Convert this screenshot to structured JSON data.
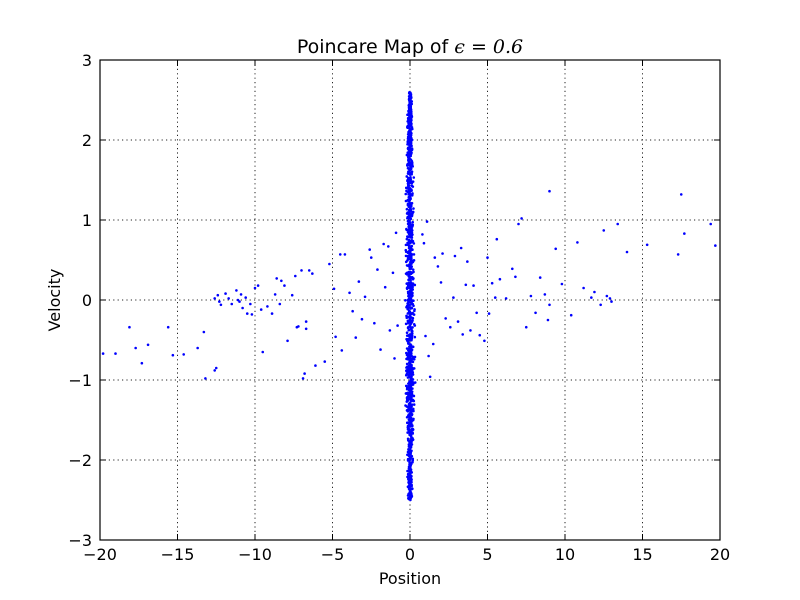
{
  "chart_data": {
    "type": "scatter",
    "title_prefix": "Poincare Map of ",
    "title_math": "ϵ = 0.6",
    "xlabel": "Position",
    "ylabel": "Velocity",
    "xlim": [
      -20,
      20
    ],
    "ylim": [
      -3,
      3
    ],
    "xticks": [
      -20,
      -15,
      -10,
      -5,
      0,
      5,
      10,
      15,
      20
    ],
    "xtick_labels": [
      "−20",
      "−15",
      "−10",
      "−5",
      "0",
      "5",
      "10",
      "15",
      "20"
    ],
    "yticks": [
      -3,
      -2,
      -1,
      0,
      1,
      2,
      3
    ],
    "ytick_labels": [
      "−3",
      "−2",
      "−1",
      "0",
      "1",
      "2",
      "3"
    ],
    "grid": true,
    "marker_color": "#0000ff",
    "central_band": {
      "description": "dense cluster of points tightly around position 0",
      "x_center": 0.0,
      "x_spread": 0.25,
      "y_range": [
        -2.5,
        2.6
      ],
      "approx_point_count": 1200
    },
    "points": [
      [
        -19.8,
        -0.67
      ],
      [
        -19.0,
        -0.67
      ],
      [
        -18.1,
        -0.34
      ],
      [
        -17.7,
        -0.6
      ],
      [
        -17.3,
        -0.79
      ],
      [
        -16.9,
        -0.56
      ],
      [
        -15.6,
        -0.34
      ],
      [
        -15.3,
        -0.69
      ],
      [
        -14.6,
        -0.68
      ],
      [
        -13.7,
        -0.6
      ],
      [
        -13.3,
        -0.4
      ],
      [
        -13.2,
        -0.98
      ],
      [
        -12.6,
        -0.88
      ],
      [
        -12.5,
        -0.85
      ],
      [
        -12.6,
        0.02
      ],
      [
        -12.4,
        0.06
      ],
      [
        -12.3,
        -0.02
      ],
      [
        -12.2,
        -0.06
      ],
      [
        -11.9,
        0.08
      ],
      [
        -11.7,
        0.02
      ],
      [
        -11.5,
        -0.05
      ],
      [
        -11.2,
        0.12
      ],
      [
        -11.1,
        0.0
      ],
      [
        -11.0,
        -0.02
      ],
      [
        -10.9,
        0.07
      ],
      [
        -10.8,
        -0.1
      ],
      [
        -10.6,
        0.03
      ],
      [
        -10.5,
        -0.17
      ],
      [
        -10.3,
        -0.05
      ],
      [
        -10.2,
        -0.18
      ],
      [
        -10.0,
        0.15
      ],
      [
        -9.8,
        0.18
      ],
      [
        -9.6,
        -0.12
      ],
      [
        -9.5,
        -0.65
      ],
      [
        -9.2,
        -0.08
      ],
      [
        -8.9,
        -0.17
      ],
      [
        -8.7,
        0.07
      ],
      [
        -8.6,
        0.27
      ],
      [
        -8.4,
        -0.05
      ],
      [
        -8.3,
        0.24
      ],
      [
        -8.1,
        0.18
      ],
      [
        -7.9,
        -0.51
      ],
      [
        -7.6,
        0.06
      ],
      [
        -7.4,
        0.3
      ],
      [
        -7.3,
        -0.34
      ],
      [
        -7.2,
        -0.33
      ],
      [
        -7.0,
        0.37
      ],
      [
        -6.9,
        -0.98
      ],
      [
        -6.8,
        -0.92
      ],
      [
        -6.7,
        -0.27
      ],
      [
        -6.7,
        -0.36
      ],
      [
        -6.5,
        0.37
      ],
      [
        -6.3,
        0.33
      ],
      [
        -6.1,
        -0.82
      ],
      [
        -5.5,
        -0.77
      ],
      [
        -5.2,
        0.45
      ],
      [
        -4.9,
        0.14
      ],
      [
        -4.8,
        -0.46
      ],
      [
        -4.5,
        0.57
      ],
      [
        -4.4,
        -0.63
      ],
      [
        -4.2,
        0.57
      ],
      [
        -3.9,
        0.09
      ],
      [
        -3.7,
        -0.14
      ],
      [
        -3.5,
        -0.47
      ],
      [
        -3.3,
        0.23
      ],
      [
        -3.1,
        -0.24
      ],
      [
        -2.9,
        0.04
      ],
      [
        -2.6,
        0.63
      ],
      [
        -2.5,
        0.53
      ],
      [
        -2.3,
        -0.29
      ],
      [
        -2.1,
        0.38
      ],
      [
        -1.9,
        -0.62
      ],
      [
        -1.7,
        0.7
      ],
      [
        -1.6,
        0.16
      ],
      [
        -1.4,
        0.67
      ],
      [
        -1.3,
        -0.38
      ],
      [
        -1.1,
        0.34
      ],
      [
        -1.0,
        -0.73
      ],
      [
        -0.9,
        0.84
      ],
      [
        -0.8,
        -0.32
      ],
      [
        0.8,
        0.82
      ],
      [
        0.9,
        0.71
      ],
      [
        1.0,
        -0.45
      ],
      [
        1.1,
        0.98
      ],
      [
        1.2,
        -0.7
      ],
      [
        1.3,
        -0.96
      ],
      [
        1.5,
        -0.55
      ],
      [
        1.6,
        0.53
      ],
      [
        1.8,
        0.42
      ],
      [
        2.0,
        0.22
      ],
      [
        2.1,
        0.58
      ],
      [
        2.3,
        -0.23
      ],
      [
        2.6,
        -0.34
      ],
      [
        2.8,
        0.03
      ],
      [
        2.9,
        0.55
      ],
      [
        3.1,
        -0.27
      ],
      [
        3.3,
        0.65
      ],
      [
        3.4,
        -0.43
      ],
      [
        3.6,
        0.19
      ],
      [
        3.7,
        0.48
      ],
      [
        3.9,
        -0.38
      ],
      [
        4.1,
        0.18
      ],
      [
        4.3,
        -0.16
      ],
      [
        4.5,
        -0.44
      ],
      [
        4.8,
        -0.51
      ],
      [
        5.0,
        0.53
      ],
      [
        5.1,
        -0.17
      ],
      [
        5.3,
        0.21
      ],
      [
        5.5,
        0.03
      ],
      [
        5.6,
        0.76
      ],
      [
        5.8,
        0.26
      ],
      [
        6.2,
        0.02
      ],
      [
        6.6,
        0.39
      ],
      [
        6.8,
        0.29
      ],
      [
        7.0,
        0.95
      ],
      [
        7.2,
        1.02
      ],
      [
        7.5,
        -0.34
      ],
      [
        7.8,
        0.05
      ],
      [
        8.1,
        -0.16
      ],
      [
        8.4,
        0.28
      ],
      [
        8.7,
        0.07
      ],
      [
        9.0,
        -0.06
      ],
      [
        8.9,
        -0.25
      ],
      [
        9.0,
        1.36
      ],
      [
        9.4,
        0.64
      ],
      [
        9.8,
        0.2
      ],
      [
        10.4,
        -0.19
      ],
      [
        10.8,
        0.72
      ],
      [
        11.2,
        0.15
      ],
      [
        11.7,
        0.03
      ],
      [
        11.9,
        0.1
      ],
      [
        12.3,
        -0.06
      ],
      [
        12.5,
        0.87
      ],
      [
        12.7,
        0.05
      ],
      [
        12.9,
        0.02
      ],
      [
        13.0,
        -0.02
      ],
      [
        13.4,
        0.95
      ],
      [
        14.0,
        0.6
      ],
      [
        15.3,
        0.69
      ],
      [
        17.3,
        0.57
      ],
      [
        17.5,
        1.32
      ],
      [
        17.7,
        0.83
      ],
      [
        19.4,
        0.95
      ],
      [
        19.7,
        0.68
      ]
    ]
  }
}
